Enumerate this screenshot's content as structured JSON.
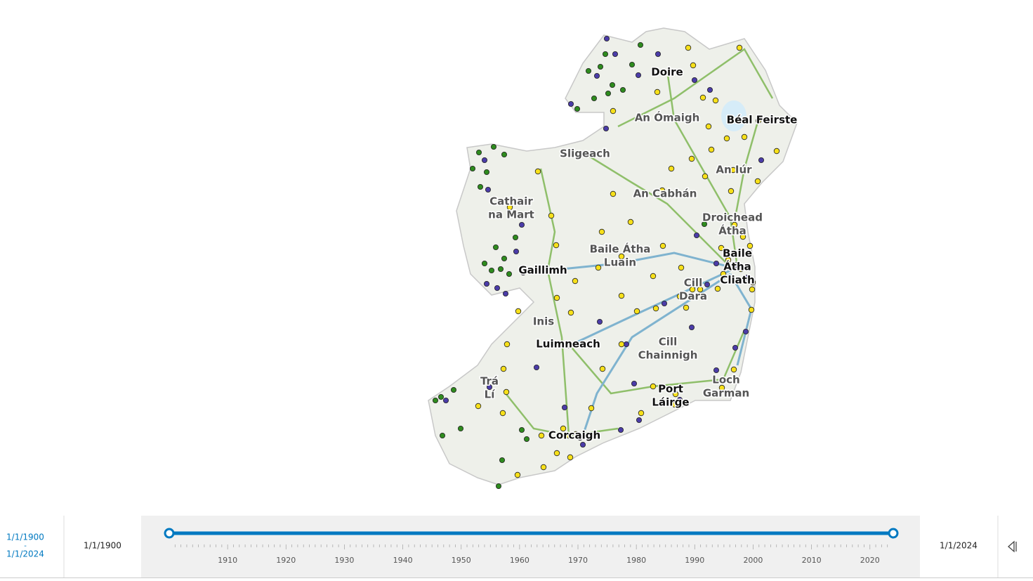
{
  "map": {
    "places": [
      [
        "Doire"
      ],
      [
        "An Ómaigh"
      ],
      [
        "Béal Feirste"
      ],
      [
        "Sligeach"
      ],
      [
        "An Iúr"
      ],
      [
        "An Cabhán"
      ],
      [
        "Cathair",
        "na Mart"
      ],
      [
        "Droichead",
        "Átha"
      ],
      [
        "Baile Átha",
        "Luain"
      ],
      [
        "Baile",
        "Átha",
        "Cliath"
      ],
      [
        "Gaillimh"
      ],
      [
        "Cill",
        "Dara"
      ],
      [
        "Inis"
      ],
      [
        "Luimneach"
      ],
      [
        "Cill",
        "Chainnigh"
      ],
      [
        "Loch",
        "Garman"
      ],
      [
        "Trá",
        "Lí"
      ],
      [
        "Port",
        "Láirge"
      ],
      [
        "Corcaigh"
      ]
    ]
  },
  "time_slider": {
    "range_start": "1/1/1900",
    "range_separator": "-",
    "range_end": "1/1/2024",
    "start_label": "1/1/1900",
    "end_label": "1/1/2024",
    "ticks": [
      "1910",
      "1920",
      "1930",
      "1940",
      "1950",
      "1960",
      "1970",
      "1980",
      "1990",
      "2000",
      "2010",
      "2020"
    ]
  }
}
